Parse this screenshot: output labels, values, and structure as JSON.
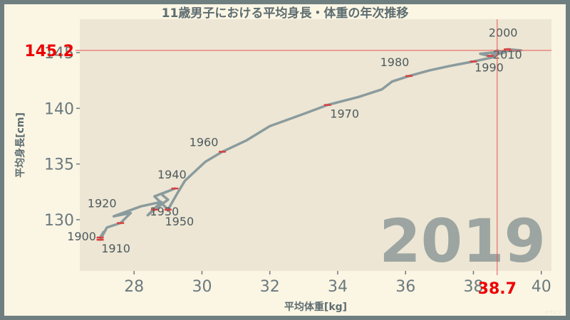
{
  "chart_data": {
    "type": "line",
    "title": "11歳男子における平均身長・体重の年次推移",
    "xlabel": "平均体重[kg]",
    "ylabel": "平均身長[cm]",
    "xlim": [
      26.4,
      40.3
    ],
    "ylim": [
      125.4,
      148.0
    ],
    "xticks": [
      "28",
      "30",
      "32",
      "34",
      "36",
      "38",
      "40"
    ],
    "yticks": [
      "130",
      "135",
      "140",
      "145"
    ],
    "grid": false,
    "series": [
      {
        "points": [
          {
            "x": 27.0,
            "y": 128.4,
            "year": "1900"
          },
          {
            "x": 27.1,
            "y": 128.9
          },
          {
            "x": 27.0,
            "y": 128.2,
            "year": "1910"
          },
          {
            "x": 27.2,
            "y": 129.3
          },
          {
            "x": 27.6,
            "y": 129.7,
            "year": "1920"
          },
          {
            "x": 27.9,
            "y": 130.6
          },
          {
            "x": 27.4,
            "y": 130.3
          },
          {
            "x": 28.2,
            "y": 131.2
          },
          {
            "x": 28.8,
            "y": 131.6
          },
          {
            "x": 28.4,
            "y": 130.4
          },
          {
            "x": 28.6,
            "y": 130.9,
            "year": "1930"
          },
          {
            "x": 29.0,
            "y": 131.8
          },
          {
            "x": 28.8,
            "y": 132.3
          },
          {
            "x": 29.2,
            "y": 132.8,
            "year": "1940"
          },
          {
            "x": 28.6,
            "y": 132.1
          },
          {
            "x": 29.0,
            "y": 130.9,
            "year": "1950"
          },
          {
            "x": 29.3,
            "y": 132.5
          },
          {
            "x": 29.5,
            "y": 133.5
          },
          {
            "x": 30.1,
            "y": 135.2
          },
          {
            "x": 30.6,
            "y": 136.1,
            "year": "1960"
          },
          {
            "x": 31.3,
            "y": 137.1
          },
          {
            "x": 32.0,
            "y": 138.4
          },
          {
            "x": 33.0,
            "y": 139.5
          },
          {
            "x": 33.7,
            "y": 140.3,
            "year": "1970"
          },
          {
            "x": 34.6,
            "y": 141.0
          },
          {
            "x": 35.3,
            "y": 141.7
          },
          {
            "x": 35.6,
            "y": 142.4
          },
          {
            "x": 36.1,
            "y": 142.9,
            "year": "1980"
          },
          {
            "x": 36.7,
            "y": 143.4
          },
          {
            "x": 37.3,
            "y": 143.8
          },
          {
            "x": 38.0,
            "y": 144.2,
            "year": "1990"
          },
          {
            "x": 38.6,
            "y": 144.6
          },
          {
            "x": 38.2,
            "y": 144.9
          },
          {
            "x": 38.9,
            "y": 145.1
          },
          {
            "x": 39.0,
            "y": 145.3,
            "year": "2000"
          },
          {
            "x": 39.4,
            "y": 145.2
          },
          {
            "x": 38.8,
            "y": 145.1
          },
          {
            "x": 38.5,
            "y": 144.7,
            "year": "2010"
          },
          {
            "x": 38.9,
            "y": 145.0
          },
          {
            "x": 38.7,
            "y": 145.2
          }
        ]
      }
    ],
    "year_labels": [
      {
        "text": "1900"
      },
      {
        "text": "1910"
      },
      {
        "text": "1920"
      },
      {
        "text": "1930"
      },
      {
        "text": "1940"
      },
      {
        "text": "1950"
      },
      {
        "text": "1960"
      },
      {
        "text": "1970"
      },
      {
        "text": "1980"
      },
      {
        "text": "1990"
      },
      {
        "text": "2000"
      },
      {
        "text": "2010"
      }
    ],
    "current": {
      "year": "2019",
      "x": 38.7,
      "y": 145.2,
      "x_label": "38.7",
      "y_label": "145.2"
    },
    "colors": {
      "line": "#8a9b9d",
      "marker": "#d94040",
      "crosshair": "#e85555",
      "plot_bg": "#ede6d4",
      "page_bg": "#fbf5e4",
      "border": "#6f7f80"
    }
  }
}
